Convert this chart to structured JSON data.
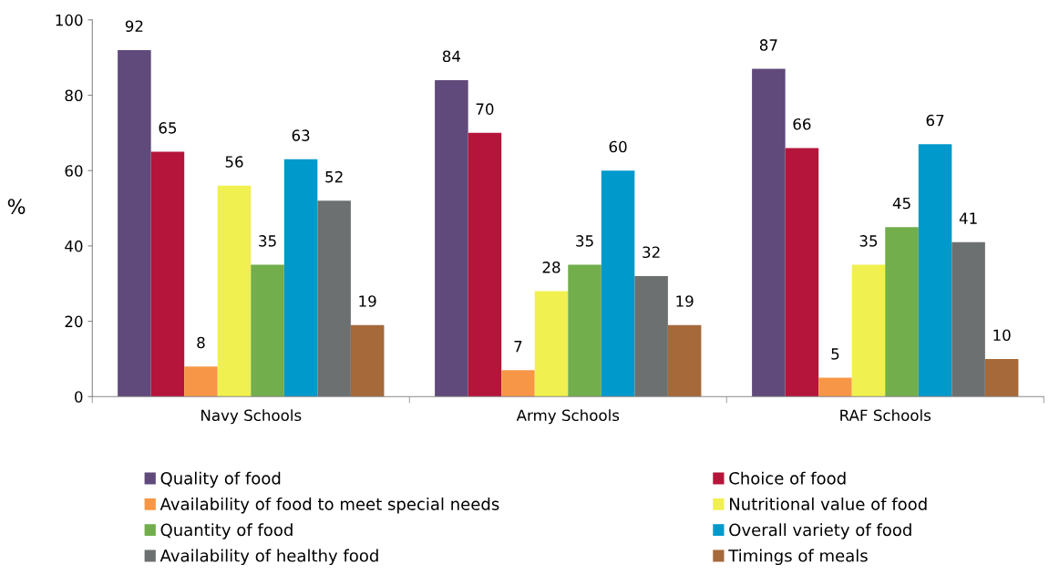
{
  "chart_data": {
    "type": "bar",
    "ylabel": "%",
    "categories": [
      "Navy Schools",
      "Army Schools",
      "RAF Schools"
    ],
    "series": [
      {
        "name": "Quality of food",
        "color": "#5f4a7b",
        "values": [
          92,
          84,
          87
        ]
      },
      {
        "name": "Choice of food",
        "color": "#b5153a",
        "values": [
          65,
          70,
          66
        ]
      },
      {
        "name": "Availability of food to meet special needs",
        "color": "#f79646",
        "values": [
          8,
          7,
          5
        ]
      },
      {
        "name": "Nutritional value of food",
        "color": "#f0f050",
        "values": [
          56,
          28,
          35
        ]
      },
      {
        "name": "Quantity of food",
        "color": "#72ae4c",
        "values": [
          35,
          35,
          45
        ]
      },
      {
        "name": "Overall variety of food",
        "color": "#0099cc",
        "values": [
          63,
          60,
          67
        ]
      },
      {
        "name": "Availability of healthy food",
        "color": "#6d7070",
        "values": [
          52,
          32,
          41
        ]
      },
      {
        "name": "Timings of meals",
        "color": "#a5693a",
        "values": [
          19,
          19,
          10
        ]
      }
    ],
    "ylim": [
      0,
      100
    ],
    "yticks": [
      0,
      20,
      40,
      60,
      80,
      100
    ],
    "grid": false,
    "legend": "bottom",
    "data_labels": true
  }
}
